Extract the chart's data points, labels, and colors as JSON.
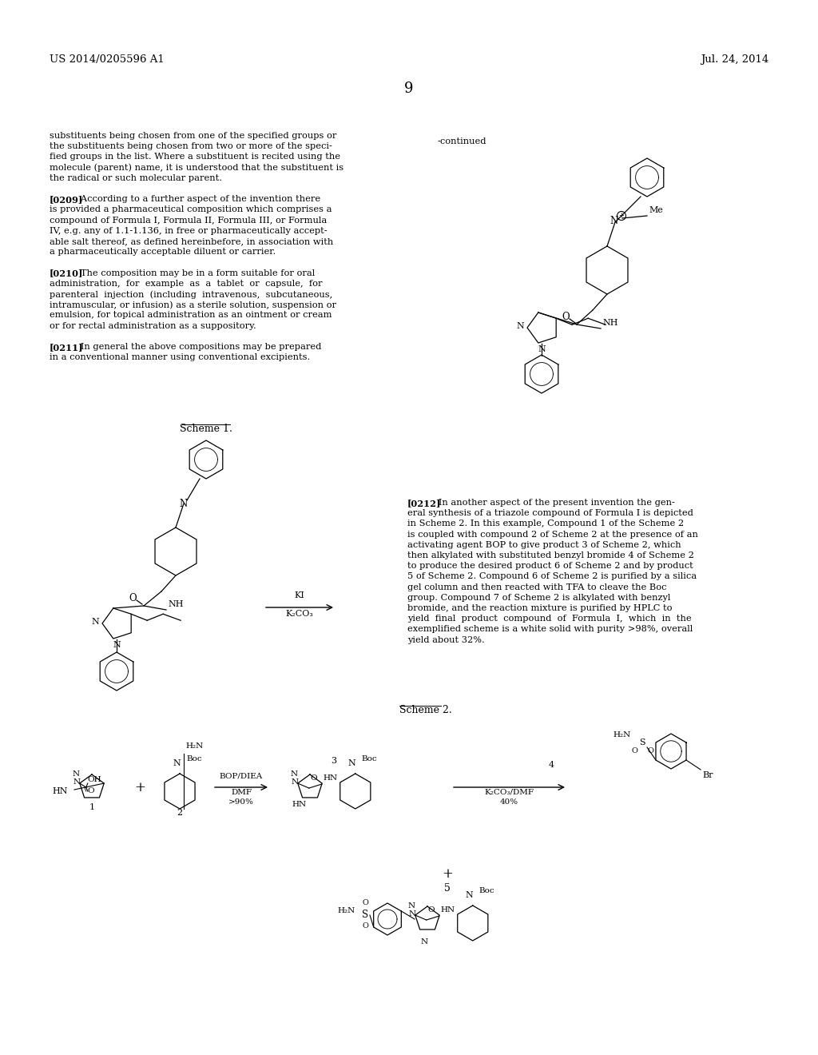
{
  "background_color": "#ffffff",
  "text_color": "#000000",
  "header_left": "US 2014/0205596 A1",
  "header_right": "Jul. 24, 2014",
  "page_number": "9",
  "continued_label": "-continued",
  "scheme1_label": "Scheme 1.",
  "scheme2_label": "Scheme 2.",
  "arrow1_top": "KI",
  "arrow1_bot": "K₂CO₃",
  "arrow2_top": "BOP/DIEA",
  "arrow2_mid": "DMF",
  "arrow2_bot": ">90%",
  "arrow3_label": "4",
  "arrow3_mid": "K₂CO₃/DMF",
  "arrow3_bot": "40%",
  "left_paragraphs": [
    "substituents being chosen from one of the specified groups or",
    "the substituents being chosen from two or more of the speci-",
    "fied groups in the list. Where a substituent is recited using the",
    "molecule (parent) name, it is understood that the substituent is",
    "the radical or such molecular parent.",
    "",
    "[0209]   According to a further aspect of the invention there",
    "is provided a pharmaceutical composition which comprises a",
    "compound of Formula I, Formula II, Formula III, or Formula",
    "IV, e.g. any of 1.1-1.136, in free or pharmaceutically accept-",
    "able salt thereof, as defined hereinbefore, in association with",
    "a pharmaceutically acceptable diluent or carrier.",
    "",
    "[0210]   The composition may be in a form suitable for oral",
    "administration,  for  example  as  a  tablet  or  capsule,  for",
    "parenteral  injection  (including  intravenous,  subcutaneous,",
    "intramuscular, or infusion) as a sterile solution, suspension or",
    "emulsion, for topical administration as an ointment or cream",
    "or for rectal administration as a suppository.",
    "",
    "[0211]   In general the above compositions may be prepared",
    "in a conventional manner using conventional excipients."
  ],
  "right_paragraphs": [
    "[0212]   In another aspect of the present invention the gen-",
    "eral synthesis of a triazole compound of Formula I is depicted",
    "in Scheme 2. In this example, Compound 1 of the Scheme 2",
    "is coupled with compound 2 of Scheme 2 at the presence of an",
    "activating agent BOP to give product 3 of Scheme 2, which",
    "then alkylated with substituted benzyl bromide 4 of Scheme 2",
    "to produce the desired product 6 of Scheme 2 and by product",
    "5 of Scheme 2. Compound 6 of Scheme 2 is purified by a silica",
    "gel column and then reacted with TFA to cleave the Boc",
    "group. Compound 7 of Scheme 2 is alkylated with benzyl",
    "bromide, and the reaction mixture is purified by HPLC to",
    "yield  final  product  compound  of  Formula  I,  which  in  the",
    "exemplified scheme is a white solid with purity >98%, overall",
    "yield about 32%."
  ]
}
